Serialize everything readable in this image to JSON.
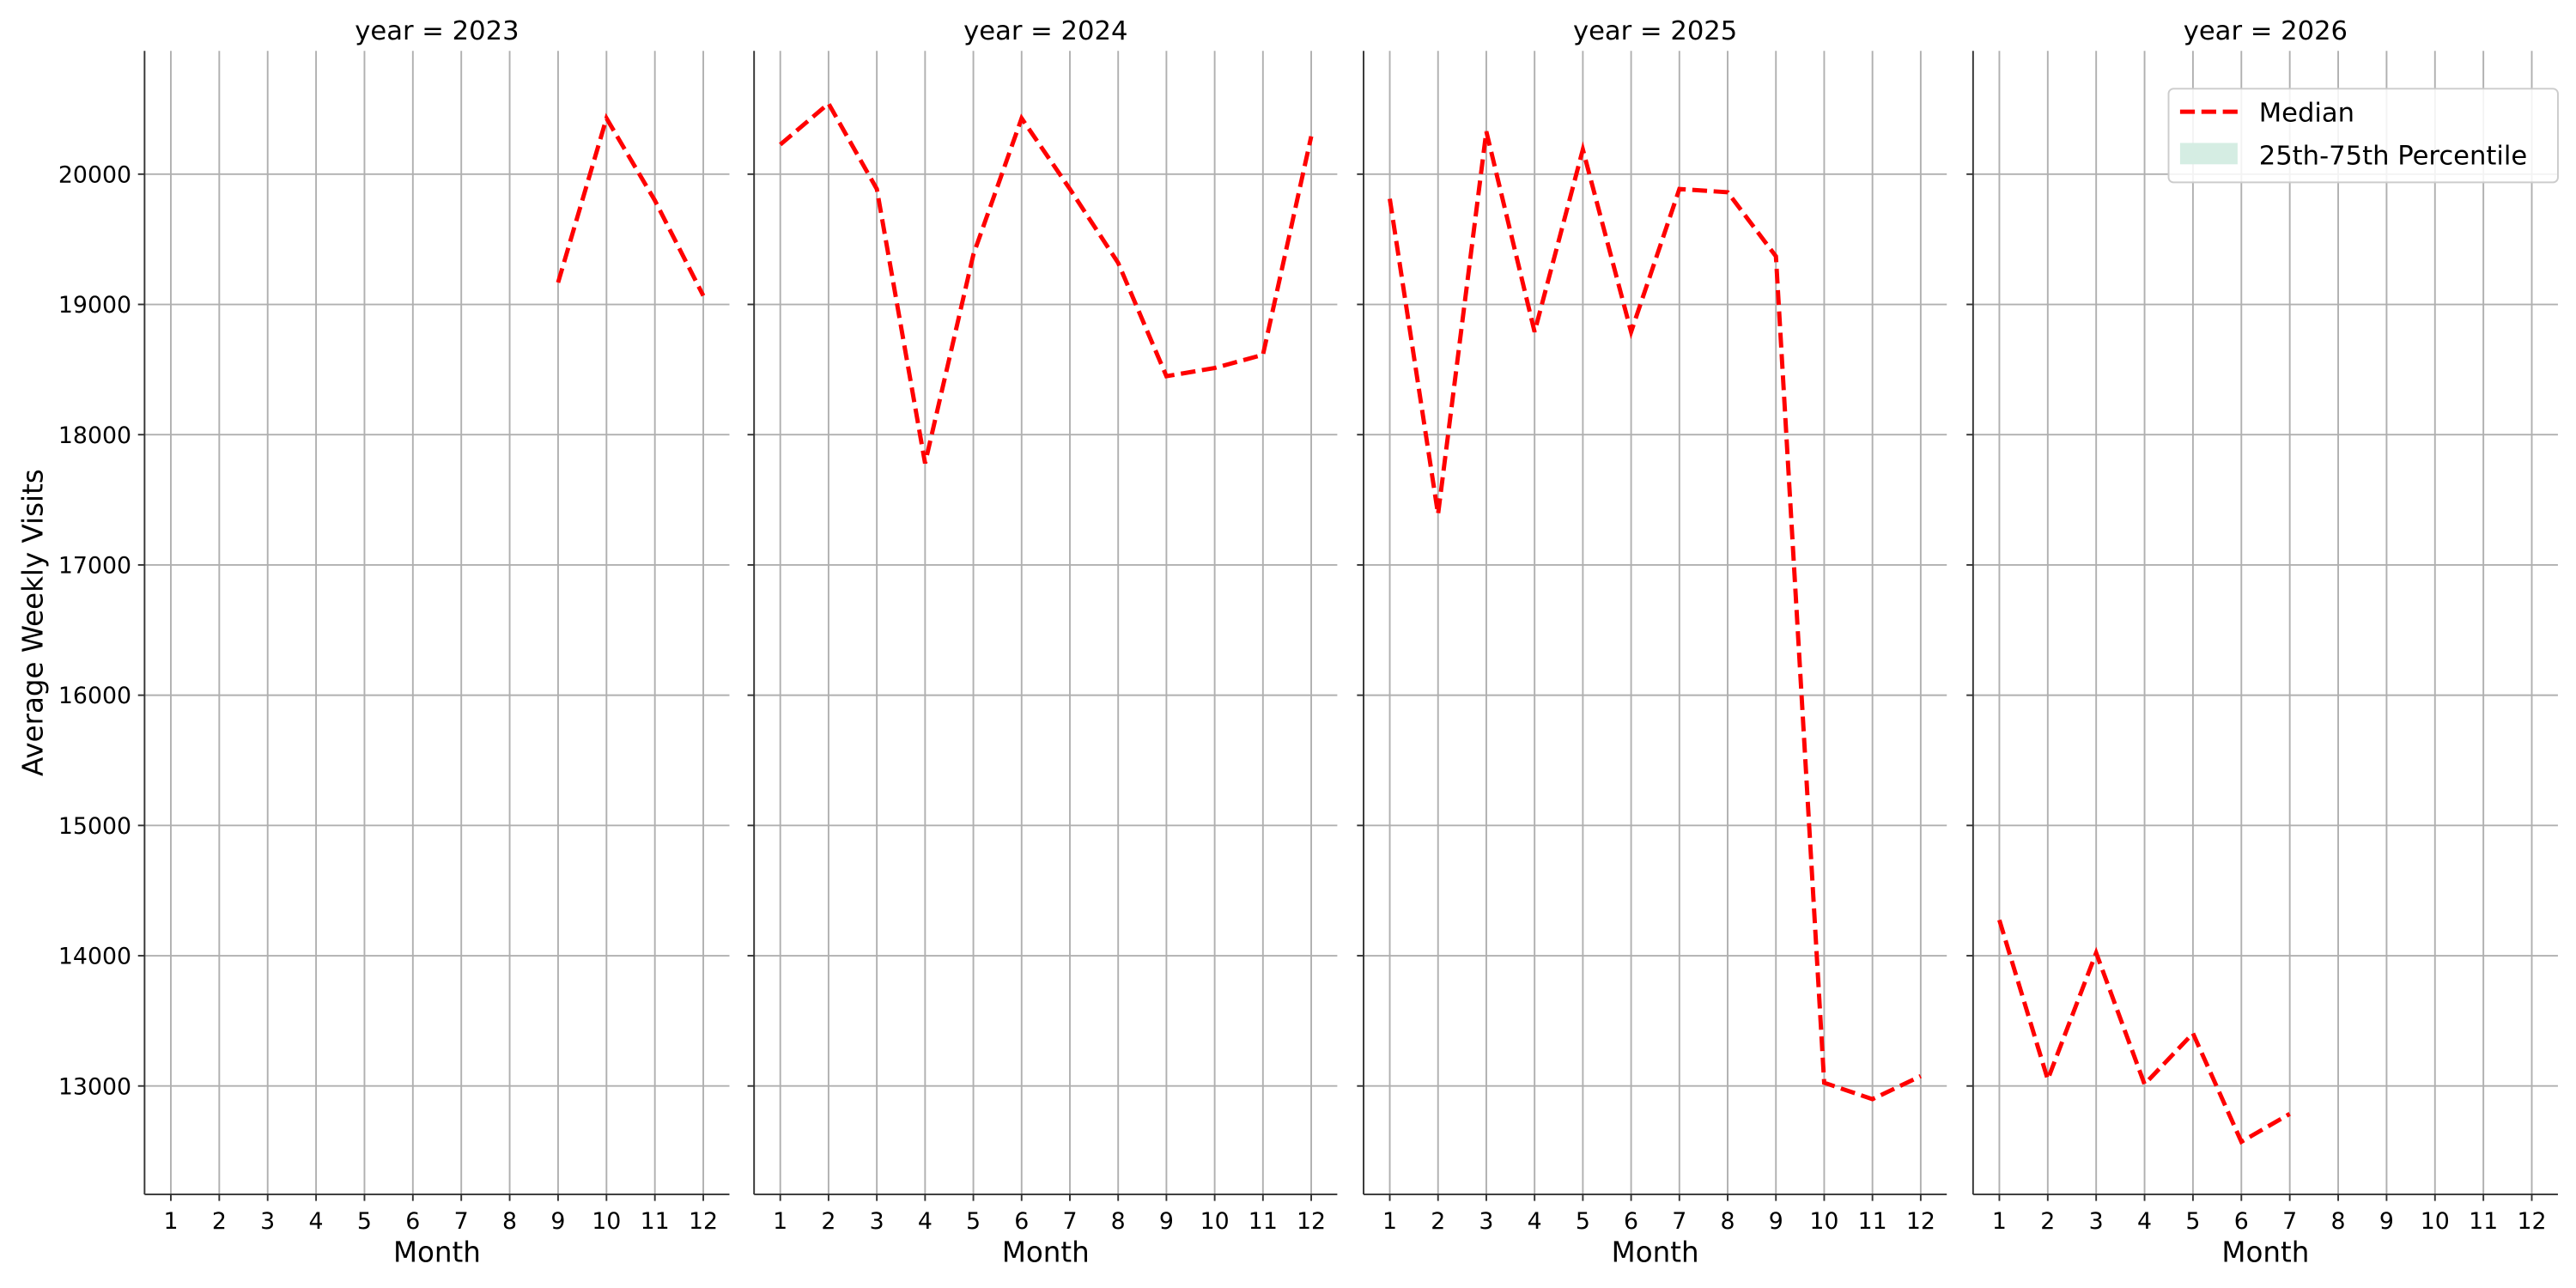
{
  "chart_data": [
    {
      "type": "line",
      "title": "year = 2023",
      "xlabel": "Month",
      "ylabel": "Average Weekly Visits",
      "x": [
        1,
        2,
        3,
        4,
        5,
        6,
        7,
        8,
        9,
        10,
        11,
        12
      ],
      "values": [
        null,
        null,
        null,
        null,
        null,
        null,
        null,
        null,
        19168,
        20429,
        19798,
        19067
      ],
      "color": "#ff0000",
      "xlim": [
        0.457,
        12.54
      ],
      "xticks": [
        1,
        2,
        3,
        4,
        5,
        6,
        7,
        8,
        9,
        10,
        11,
        12
      ],
      "ylim": [
        12168,
        20946
      ],
      "yticks": [
        13000,
        14000,
        15000,
        16000,
        17000,
        18000,
        19000,
        20000
      ],
      "ytick_labels": true,
      "grid": true
    },
    {
      "type": "line",
      "title": "year = 2024",
      "xlabel": "Month",
      "x": [
        1,
        2,
        3,
        4,
        5,
        6,
        7,
        8,
        9,
        10,
        11,
        12
      ],
      "values": [
        20227,
        20542,
        19886,
        17780,
        19382,
        20429,
        19886,
        19319,
        18449,
        18512,
        18613,
        20290
      ],
      "color": "#ff0000",
      "xlim": [
        0.457,
        12.54
      ],
      "xticks": [
        1,
        2,
        3,
        4,
        5,
        6,
        7,
        8,
        9,
        10,
        11,
        12
      ],
      "ylim": [
        12168,
        20946
      ],
      "yticks": [
        13000,
        14000,
        15000,
        16000,
        17000,
        18000,
        19000,
        20000
      ],
      "ytick_labels": false,
      "grid": true
    },
    {
      "type": "line",
      "title": "year = 2025",
      "xlabel": "Month",
      "x": [
        1,
        2,
        3,
        4,
        5,
        6,
        7,
        8,
        9,
        10,
        11,
        12
      ],
      "values": [
        19811,
        17389,
        20328,
        18789,
        20189,
        18789,
        19886,
        19861,
        19369,
        13025,
        12899,
        13076
      ],
      "color": "#ff0000",
      "xlim": [
        0.457,
        12.54
      ],
      "xticks": [
        1,
        2,
        3,
        4,
        5,
        6,
        7,
        8,
        9,
        10,
        11,
        12
      ],
      "ylim": [
        12168,
        20946
      ],
      "yticks": [
        13000,
        14000,
        15000,
        16000,
        17000,
        18000,
        19000,
        20000
      ],
      "ytick_labels": false,
      "grid": true
    },
    {
      "type": "line",
      "title": "year = 2026",
      "xlabel": "Month",
      "x": [
        1,
        2,
        3,
        4,
        5,
        6,
        7,
        8,
        9,
        10,
        11,
        12
      ],
      "values": [
        14274,
        13050,
        14022,
        13013,
        13404,
        12572,
        12786,
        null,
        null,
        null,
        null,
        null
      ],
      "color": "#ff0000",
      "xlim": [
        0.457,
        12.54
      ],
      "xticks": [
        1,
        2,
        3,
        4,
        5,
        6,
        7,
        8,
        9,
        10,
        11,
        12
      ],
      "ylim": [
        12168,
        20946
      ],
      "yticks": [
        13000,
        14000,
        15000,
        16000,
        17000,
        18000,
        19000,
        20000
      ],
      "ytick_labels": false,
      "grid": true,
      "legend": {
        "loc": "upper right",
        "entries": [
          {
            "name": "Median",
            "color": "#ff0000",
            "style": "dashed"
          },
          {
            "name": "25th-75th Percentile",
            "color": "#d5ede3",
            "style": "band"
          }
        ]
      }
    }
  ]
}
